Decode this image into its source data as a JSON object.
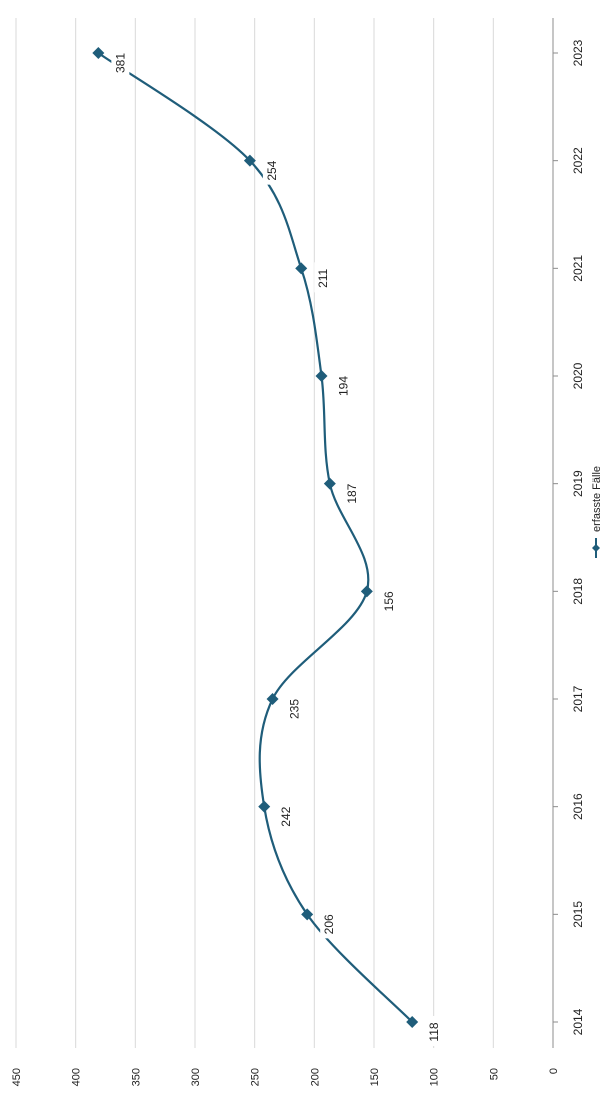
{
  "chart_data": {
    "type": "line",
    "orientation": "rotated-90-clockwise",
    "title": "",
    "xlabel": "",
    "ylabel": "",
    "categories": [
      "2014",
      "2015",
      "2016",
      "2017",
      "2018",
      "2019",
      "2020",
      "2021",
      "2022",
      "2023"
    ],
    "series": [
      {
        "name": "erfasste Fälle",
        "values": [
          118,
          206,
          242,
          235,
          156,
          187,
          194,
          211,
          254,
          381
        ]
      }
    ],
    "ylim": [
      0,
      450
    ],
    "yticks": [
      "0",
      "50",
      "100",
      "150",
      "200",
      "250",
      "300",
      "350",
      "400",
      "450"
    ],
    "data_labels": [
      "118",
      "206",
      "242",
      "235",
      "156",
      "187",
      "194",
      "211",
      "254",
      "381"
    ],
    "grid": true,
    "legend": "bottom",
    "smooth": true,
    "colors": {
      "series": "#1f5d7a",
      "grid": "#d9d9d9",
      "axis": "#8c8c8c",
      "text": "#222222"
    }
  }
}
